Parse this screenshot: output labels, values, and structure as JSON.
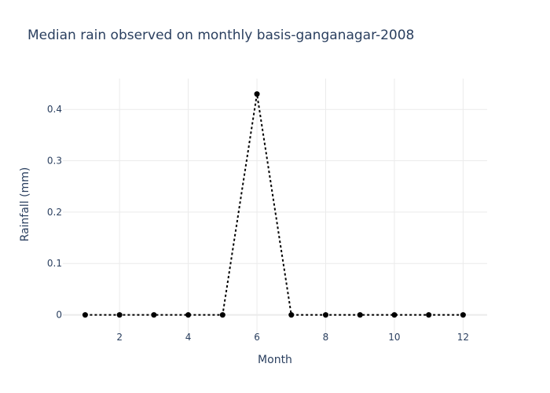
{
  "chart_data": {
    "type": "line",
    "title": "Median rain observed on monthly basis-ganganagar-2008",
    "xlabel": "Month",
    "ylabel": "Rainfall (mm)",
    "x": [
      1,
      2,
      3,
      4,
      5,
      6,
      7,
      8,
      9,
      10,
      11,
      12
    ],
    "series": [
      {
        "values": [
          0,
          0,
          0,
          0,
          0,
          0.43,
          0,
          0,
          0,
          0,
          0,
          0
        ]
      }
    ],
    "xlim": [
      0.35,
      12.7
    ],
    "ylim": [
      -0.045,
      0.46
    ],
    "x_ticks": [
      2,
      4,
      6,
      8,
      10,
      12
    ],
    "x_tick_labels": [
      "2",
      "4",
      "6",
      "8",
      "10",
      "12"
    ],
    "y_ticks": [
      0,
      0.1,
      0.2,
      0.3,
      0.4
    ],
    "y_tick_labels": [
      "0",
      "0.1",
      "0.2",
      "0.3",
      "0.4"
    ],
    "grid": true,
    "line_style": "dotted",
    "markers": true,
    "colors": {
      "series": "#000000",
      "text": "#2a3f5f",
      "grid": "#ebebeb"
    }
  }
}
